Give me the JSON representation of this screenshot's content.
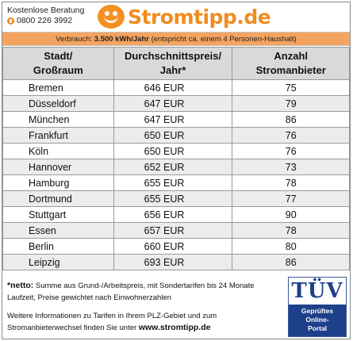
{
  "header": {
    "contact_label": "Kostenlose Beratung",
    "contact_phone": "0800 226 3992",
    "phone_icon": "phone-icon",
    "logo_text": "Stromtipp.de",
    "logo_icon": "smiley-logo-icon",
    "accent_color": "#f08c1e"
  },
  "consumption": {
    "prefix": "Verbrauch: ",
    "amount": "3.500 kWh/Jahr",
    "suffix": " (entspricht ca. einem 4 Personen-Haushalt)"
  },
  "table": {
    "headers": {
      "city_line1": "Stadt/",
      "city_line2": "Großraum",
      "price_line1": "Durchschnittspreis/",
      "price_line2": "Jahr*",
      "count_line1": "Anzahl",
      "count_line2": "Stromanbieter"
    },
    "rows": [
      {
        "city": "Bremen",
        "price": "646 EUR",
        "count": "75"
      },
      {
        "city": "Düsseldorf",
        "price": "647 EUR",
        "count": "79"
      },
      {
        "city": "München",
        "price": "647 EUR",
        "count": "86"
      },
      {
        "city": "Frankfurt",
        "price": "650 EUR",
        "count": "76"
      },
      {
        "city": "Köln",
        "price": "650 EUR",
        "count": "76"
      },
      {
        "city": "Hannover",
        "price": "652 EUR",
        "count": "73"
      },
      {
        "city": "Hamburg",
        "price": "655 EUR",
        "count": "78"
      },
      {
        "city": "Dortmund",
        "price": "655 EUR",
        "count": "77"
      },
      {
        "city": "Stuttgart",
        "price": "656 EUR",
        "count": "90"
      },
      {
        "city": "Essen",
        "price": "657 EUR",
        "count": "78"
      },
      {
        "city": "Berlin",
        "price": "660 EUR",
        "count": "80"
      },
      {
        "city": "Leipzig",
        "price": "693 EUR",
        "count": "86"
      }
    ]
  },
  "footer": {
    "note_label": "*netto:",
    "note_text": " Summe aus Grund-/Arbeitspreis, mit Sondertarifen bis 24 Monate Laufzeit, Preise gewichtet nach Einwohnerzahlen",
    "info_text": "Weitere Informationen zu Tarifen in Ihrem PLZ-Gebiet und zum Stromanbieterwechsel finden Sie unter ",
    "info_link": "www.stromtipp.de",
    "tuv_label": "TÜV",
    "tuv_line1": "Geprüftes",
    "tuv_line2": "Online-",
    "tuv_line3": "Portal"
  }
}
